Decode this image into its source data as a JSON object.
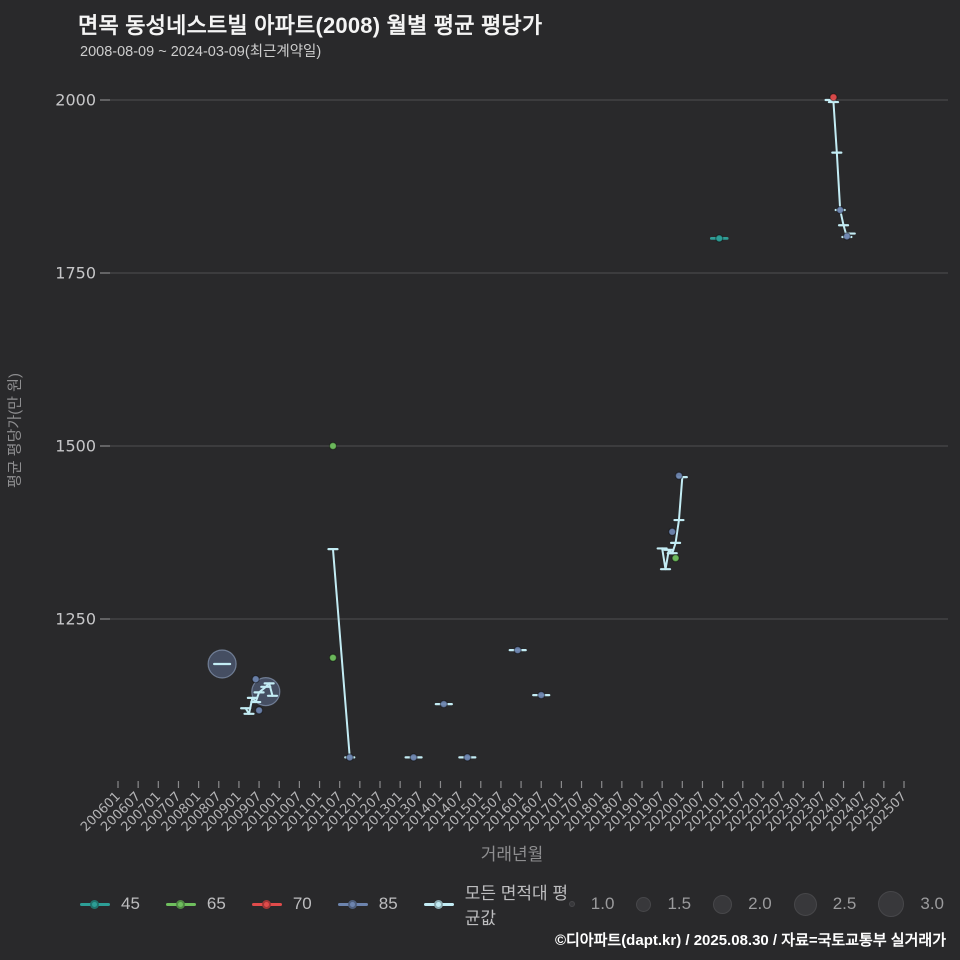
{
  "header": {
    "title": "면목 동성네스트빌 아파트(2008) 월별 평균 평당가",
    "subtitle": "2008-08-09 ~ 2024-03-09(최근계약일)"
  },
  "footer": {
    "credit": "©디아파트(dapt.kr) / 2025.08.30 / 자료=국토교통부 실거래가"
  },
  "colors": {
    "background": "#29292b",
    "grid": "#4e4e52",
    "tick": "#8a8a8c",
    "tick_label": "#b4b4b6",
    "ytick_label": "#c6c6c8",
    "axis_title": "#8e8e90",
    "legend_text": "#bdbdbf",
    "size_legend_circle": "#38383b",
    "footer_text": "#ffffff"
  },
  "chart_data": {
    "type": "scatter",
    "title": "면목 동성네스트빌 아파트(2008) 월별 평균 평당가",
    "subtitle": "2008-08-09 ~ 2024-03-09(최근계약일)",
    "xlabel": "거래년월",
    "ylabel": "평균 평당가(만 원)",
    "yticks": [
      1250,
      1500,
      1750,
      2000
    ],
    "ylim": [
      1030,
      2015
    ],
    "grid": "horizontal-only",
    "legend_position": "bottom",
    "xticks": [
      "200601",
      "200607",
      "200701",
      "200707",
      "200801",
      "200807",
      "200901",
      "200907",
      "201001",
      "201007",
      "201101",
      "201107",
      "201201",
      "201207",
      "201301",
      "201307",
      "201401",
      "201407",
      "201501",
      "201507",
      "201601",
      "201607",
      "201701",
      "201707",
      "201801",
      "201807",
      "201901",
      "201907",
      "202001",
      "202007",
      "202101",
      "202107",
      "202201",
      "202207",
      "202301",
      "202307",
      "202401",
      "202407",
      "202501",
      "202507"
    ],
    "series": [
      {
        "name": "45",
        "color": "#2d9e96",
        "marker": "dash-dot",
        "points": [
          {
            "x": "202012",
            "y": 1800,
            "size": 1.0
          }
        ]
      },
      {
        "name": "65",
        "color": "#6fbf5e",
        "marker": "dot",
        "points": [
          {
            "x": "201105",
            "y": 1500,
            "size": 1.0
          },
          {
            "x": "201105",
            "y": 1194,
            "size": 1.0
          },
          {
            "x": "201911",
            "y": 1338,
            "size": 1.0
          }
        ]
      },
      {
        "name": "70",
        "color": "#e04b4b",
        "marker": "dot",
        "points": [
          {
            "x": "202310",
            "y": 2004,
            "size": 1.0
          }
        ]
      },
      {
        "name": "85",
        "color": "#6d84ae",
        "marker": "bubble",
        "points": [
          {
            "x": "200808",
            "y": 1185,
            "size": 3.0
          },
          {
            "x": "200906",
            "y": 1163,
            "size": 1.0
          },
          {
            "x": "200907",
            "y": 1118,
            "size": 1.0
          },
          {
            "x": "200909",
            "y": 1145,
            "size": 3.0
          },
          {
            "x": "201110",
            "y": 1050,
            "size": 1.0
          },
          {
            "x": "201305",
            "y": 1050,
            "size": 1.0
          },
          {
            "x": "201402",
            "y": 1127,
            "size": 1.0
          },
          {
            "x": "201409",
            "y": 1050,
            "size": 1.0
          },
          {
            "x": "201512",
            "y": 1205,
            "size": 1.0
          },
          {
            "x": "201607",
            "y": 1140,
            "size": 1.0
          },
          {
            "x": "201910",
            "y": 1376,
            "size": 1.0
          },
          {
            "x": "201912",
            "y": 1457,
            "size": 1.0
          },
          {
            "x": "202312",
            "y": 1841,
            "size": 1.0
          },
          {
            "x": "202402",
            "y": 1803,
            "size": 1.0
          }
        ]
      },
      {
        "name": "모든 면적대 평균값",
        "color": "#c3ecf4",
        "marker": "line-dash",
        "segments": [
          [
            [
              "200808",
              1185
            ]
          ],
          [
            [
              "200903",
              1121
            ],
            [
              "200904",
              1113
            ],
            [
              "200905",
              1136
            ],
            [
              "200906",
              1130
            ],
            [
              "200907",
              1144
            ],
            [
              "200909",
              1152
            ],
            [
              "200910",
              1157
            ],
            [
              "200911",
              1139
            ]
          ],
          [
            [
              "201105",
              1351
            ],
            [
              "201110",
              1050
            ]
          ],
          [
            [
              "201305",
              1050
            ]
          ],
          [
            [
              "201402",
              1127
            ]
          ],
          [
            [
              "201409",
              1050
            ]
          ],
          [
            [
              "201512",
              1205
            ]
          ],
          [
            [
              "201607",
              1140
            ]
          ],
          [
            [
              "201907",
              1352
            ],
            [
              "201908",
              1322
            ],
            [
              "201909",
              1350
            ],
            [
              "201910",
              1345
            ],
            [
              "201911",
              1360
            ],
            [
              "201912",
              1393
            ],
            [
              "202001",
              1455
            ]
          ],
          [
            [
              "202012",
              1800
            ]
          ],
          [
            [
              "202309",
              2000
            ],
            [
              "202310",
              1997
            ],
            [
              "202311",
              1924
            ],
            [
              "202312",
              1841
            ],
            [
              "202401",
              1819
            ],
            [
              "202402",
              1802
            ],
            [
              "202403",
              1807
            ]
          ]
        ]
      }
    ],
    "size_legend": {
      "values": [
        "1.0",
        "1.5",
        "2.0",
        "2.5",
        "3.0"
      ]
    }
  }
}
